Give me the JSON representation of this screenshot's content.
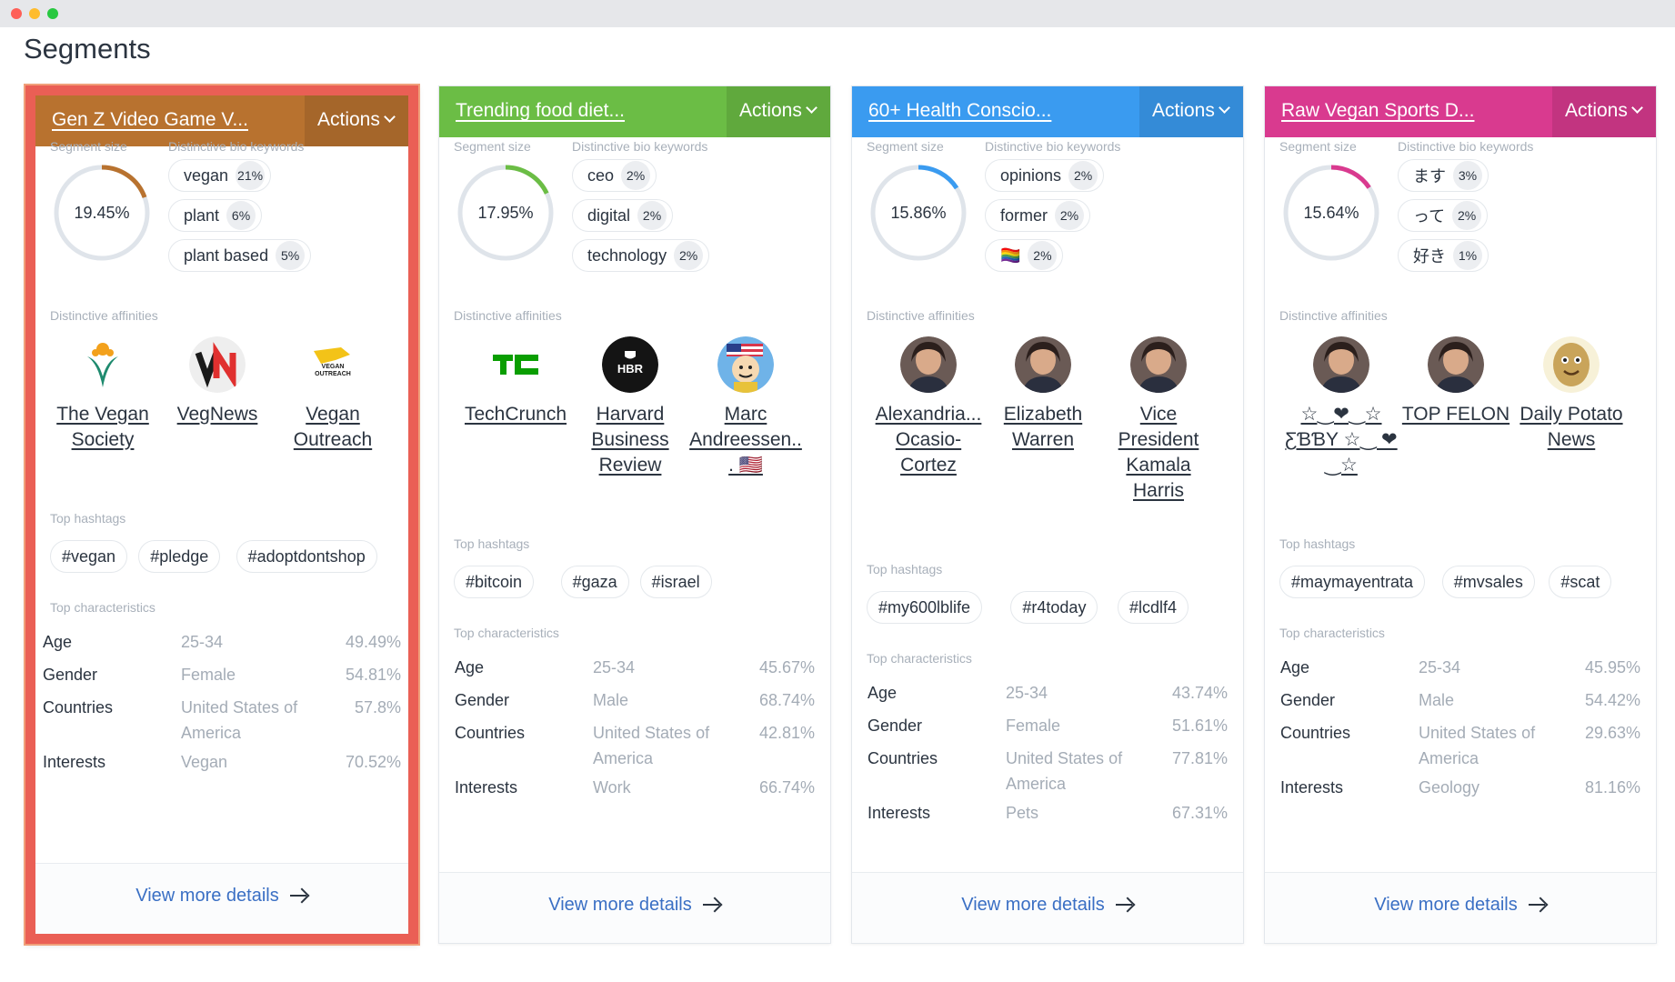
{
  "page": {
    "title": "Segments"
  },
  "labels": {
    "segment_size": "Segment size",
    "bio_keywords": "Distinctive bio keywords",
    "affinities": "Distinctive affinities",
    "hashtags": "Top hashtags",
    "characteristics": "Top characteristics",
    "actions": "Actions",
    "view_more": "View more details"
  },
  "cards": [
    {
      "title": "Gen Z Video Game V...",
      "color": "#b8722f",
      "selected": true,
      "segment_size": {
        "text": "19.45%",
        "value": 19.45
      },
      "keywords": [
        {
          "word": "vegan",
          "pct": "21%"
        },
        {
          "word": "plant",
          "pct": "6%"
        },
        {
          "word": "plant based",
          "pct": "5%"
        }
      ],
      "affinities": [
        {
          "name": "The Vegan Society",
          "icon": "vegan-society-logo"
        },
        {
          "name": "VegNews",
          "icon": "vegnews-logo"
        },
        {
          "name": "Vegan Outreach",
          "icon": "vegan-outreach-logo",
          "logo_text": "VEGAN OUTREACH"
        }
      ],
      "hashtags": [
        "#vegan",
        "#pledge",
        "#adoptdontshop"
      ],
      "characteristics": [
        {
          "key": "Age",
          "value": "25-34",
          "pct": "49.49%"
        },
        {
          "key": "Gender",
          "value": "Female",
          "pct": "54.81%"
        },
        {
          "key": "Countries",
          "value": "United States of America",
          "pct": "57.8%"
        },
        {
          "key": "Interests",
          "value": "Vegan",
          "pct": "70.52%"
        }
      ]
    },
    {
      "title": "Trending food diet...",
      "color": "#6bbd45",
      "selected": false,
      "segment_size": {
        "text": "17.95%",
        "value": 17.95
      },
      "keywords": [
        {
          "word": "ceo",
          "pct": "2%"
        },
        {
          "word": "digital",
          "pct": "2%"
        },
        {
          "word": "technology",
          "pct": "2%"
        }
      ],
      "affinities": [
        {
          "name": "TechCrunch",
          "icon": "techcrunch-logo",
          "logo_text": "TC"
        },
        {
          "name": "Harvard Business Review",
          "icon": "hbr-logo",
          "logo_text": "HBR"
        },
        {
          "name": "Marc Andreessen... 🇺🇸",
          "icon": "cartoon-avatar"
        }
      ],
      "hashtags": [
        "#bitcoin",
        "#gaza",
        "#israel"
      ],
      "characteristics": [
        {
          "key": "Age",
          "value": "25-34",
          "pct": "45.67%"
        },
        {
          "key": "Gender",
          "value": "Male",
          "pct": "68.74%"
        },
        {
          "key": "Countries",
          "value": "United States of America",
          "pct": "42.81%"
        },
        {
          "key": "Interests",
          "value": "Work",
          "pct": "66.74%"
        }
      ]
    },
    {
      "title": "60+ Health Conscio...",
      "color": "#3a9bf0",
      "selected": false,
      "segment_size": {
        "text": "15.86%",
        "value": 15.86
      },
      "keywords": [
        {
          "word": "opinions",
          "pct": "2%"
        },
        {
          "word": "former",
          "pct": "2%"
        },
        {
          "word": "🏳️‍🌈",
          "pct": "2%"
        }
      ],
      "affinities": [
        {
          "name": "Alexandria... Ocasio-Cortez",
          "icon": "person-avatar"
        },
        {
          "name": "Elizabeth Warren",
          "icon": "person-avatar"
        },
        {
          "name": "Vice President Kamala Harris",
          "icon": "person-avatar"
        }
      ],
      "hashtags": [
        "#my600lblife",
        "#r4today",
        "#lcdlf4"
      ],
      "characteristics": [
        {
          "key": "Age",
          "value": "25-34",
          "pct": "43.74%"
        },
        {
          "key": "Gender",
          "value": "Female",
          "pct": "51.61%"
        },
        {
          "key": "Countries",
          "value": "United States of America",
          "pct": "77.81%"
        },
        {
          "key": "Interests",
          "value": "Pets",
          "pct": "67.31%"
        }
      ]
    },
    {
      "title": "Raw Vegan Sports D...",
      "color": "#d93a8f",
      "selected": false,
      "segment_size": {
        "text": "15.64%",
        "value": 15.64
      },
      "keywords": [
        {
          "word": "ます",
          "pct": "3%"
        },
        {
          "word": "って",
          "pct": "2%"
        },
        {
          "word": "好き",
          "pct": "1%"
        }
      ],
      "affinities": [
        {
          "name": "☆‿❤‿☆ ƸƁƁY ☆‿ ❤‿☆",
          "icon": "person-avatar"
        },
        {
          "name": "TOP FELON",
          "icon": "person-avatar"
        },
        {
          "name": "Daily Potato News",
          "icon": "potato-avatar"
        }
      ],
      "hashtags": [
        "#maymayentrata",
        "#mvsales",
        "#scat"
      ],
      "characteristics": [
        {
          "key": "Age",
          "value": "25-34",
          "pct": "45.95%"
        },
        {
          "key": "Gender",
          "value": "Male",
          "pct": "54.42%"
        },
        {
          "key": "Countries",
          "value": "United States of America",
          "pct": "29.63%"
        },
        {
          "key": "Interests",
          "value": "Geology",
          "pct": "81.16%"
        }
      ]
    }
  ]
}
